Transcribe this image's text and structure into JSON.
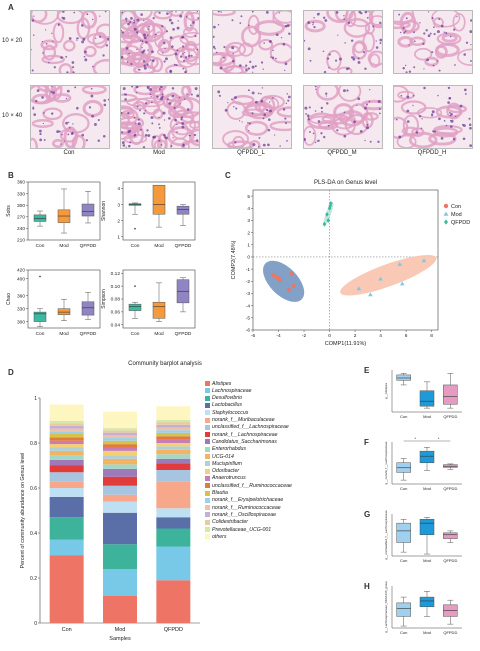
{
  "panels": {
    "A": "A",
    "B": "B",
    "C": "C",
    "D": "D",
    "E": "E",
    "F": "F",
    "G": "G",
    "H": "H"
  },
  "histology": {
    "row_labels": [
      "10 × 20",
      "10 × 40"
    ],
    "column_labels": [
      "Con",
      "Mod",
      "QFPDD_L",
      "QFPDD_M",
      "QFPDD_H"
    ]
  },
  "colors": {
    "con": "#3cb9a0",
    "mod": "#f59a3c",
    "qfpdd": "#9085c2",
    "tissue": "#e1a0c4",
    "nuclei": "#6a3f9a"
  },
  "alpha": {
    "groups": [
      "Con",
      "Mod",
      "QFPDD"
    ],
    "plots": [
      {
        "ylabel": "Sobs",
        "ticks": [
          "360",
          "330",
          "300",
          "270",
          "240",
          "210"
        ],
        "ymin": 210,
        "ymax": 360,
        "boxes": [
          [
            246,
            258,
            265,
            275,
            285
          ],
          [
            228,
            255,
            272,
            288,
            342
          ],
          [
            254,
            272,
            284,
            303,
            336
          ]
        ],
        "outliers": [
          [],
          [],
          []
        ]
      },
      {
        "ylabel": "Shannon",
        "ticks": [
          "4",
          "3",
          "2",
          "1"
        ],
        "ymin": 0.8,
        "ymax": 4.4,
        "boxes": [
          [
            2.4,
            2.95,
            3.0,
            3.05,
            3.1
          ],
          [
            1.6,
            2.4,
            3.0,
            4.2,
            4.2
          ],
          [
            1.7,
            2.4,
            2.7,
            2.9,
            3.0
          ]
        ],
        "outliers": [
          [
            1.5
          ],
          [],
          []
        ]
      },
      {
        "ylabel": "Chao",
        "ticks": [
          "420",
          "400",
          "360",
          "330",
          "300"
        ],
        "ymin": 285,
        "ymax": 420,
        "boxes": [
          [
            288,
            300,
            318,
            322,
            330
          ],
          [
            302,
            316,
            322,
            330,
            352
          ],
          [
            305,
            315,
            332,
            346,
            368
          ]
        ],
        "outliers": [
          [
            405
          ],
          [],
          []
        ]
      },
      {
        "ylabel": "Simpson",
        "ticks": [
          "0.12",
          "0.10",
          "0.08",
          "0.06",
          "0.04"
        ],
        "ymin": 0.035,
        "ymax": 0.125,
        "boxes": [
          [
            0.05,
            0.062,
            0.068,
            0.072,
            0.075
          ],
          [
            0.045,
            0.05,
            0.068,
            0.075,
            0.105
          ],
          [
            0.06,
            0.074,
            0.092,
            0.11,
            0.113
          ]
        ],
        "outliers": [
          [
            0.1
          ],
          [],
          []
        ]
      }
    ]
  },
  "plsda": {
    "title": "PLS-DA on Genus level",
    "xlabel": "COMP1(11.91%)",
    "ylabel": "COMP2(7.48%)",
    "xticks": [
      "-6",
      "-4",
      "-2",
      "0",
      "2",
      "4",
      "6",
      "8"
    ],
    "yticks": [
      "5",
      "4",
      "3",
      "2",
      "1",
      "0",
      "-1",
      "-2",
      "-3",
      "-4",
      "-5",
      "-6"
    ],
    "legend": [
      "Con",
      "Mod",
      "QFPDD"
    ],
    "points": {
      "con": [
        [
          -4.1,
          -1.7
        ],
        [
          -3.2,
          -2.7
        ],
        [
          -3.9,
          -1.9
        ],
        [
          -2.8,
          -2.4
        ],
        [
          -4.4,
          -1.5
        ],
        [
          -3.0,
          -1.4
        ]
      ],
      "mod": [
        [
          5.5,
          -0.6
        ],
        [
          7.4,
          -0.3
        ],
        [
          2.3,
          -2.6
        ],
        [
          4.0,
          -1.8
        ],
        [
          3.2,
          -3.1
        ],
        [
          5.7,
          -2.2
        ]
      ],
      "qfpdd": [
        [
          -0.4,
          2.7
        ],
        [
          0.1,
          4.4
        ],
        [
          0.0,
          4.0
        ],
        [
          -0.2,
          3.5
        ],
        [
          -0.1,
          3.0
        ],
        [
          0.05,
          4.2
        ]
      ]
    }
  },
  "chart_data": {
    "type": "bar",
    "title": "Community barplot analysis",
    "xlabel": "Samples",
    "ylabel": "Percent of community abundance on Genus level",
    "yticks": [
      "0",
      "0.2",
      "0.4",
      "0.6",
      "0.8",
      "1"
    ],
    "categories": [
      "Con",
      "Mod",
      "QFPDD"
    ],
    "series": [
      {
        "name": "Alistipes",
        "color": "#ee7565",
        "values": [
          0.3,
          0.12,
          0.19
        ]
      },
      {
        "name": "Lachnospiraceae",
        "color": "#78c8e8",
        "values": [
          0.07,
          0.12,
          0.15
        ]
      },
      {
        "name": "Desulfovibrio",
        "color": "#3cb39a",
        "values": [
          0.1,
          0.11,
          0.08
        ]
      },
      {
        "name": "Lactobacillus",
        "color": "#5a6ea8",
        "values": [
          0.09,
          0.14,
          0.05
        ]
      },
      {
        "name": "Staphylococcus",
        "color": "#bfe0f2",
        "values": [
          0.04,
          0.05,
          0.04
        ]
      },
      {
        "name": "norank_f__Muribaculaceae",
        "color": "#f8a88a",
        "values": [
          0.03,
          0.03,
          0.12
        ]
      },
      {
        "name": "unclassified_f__Lachnospiraceae",
        "color": "#a7c5e0",
        "values": [
          0.04,
          0.04,
          0.05
        ]
      },
      {
        "name": "norank_f__Lachnospiraceae",
        "color": "#e23b3b",
        "values": [
          0.03,
          0.04,
          0.03
        ]
      },
      {
        "name": "Candidatus_Saccharimonas",
        "color": "#9e7bb8",
        "values": [
          0.025,
          0.035,
          0.02
        ]
      },
      {
        "name": "Enterorhabdus",
        "color": "#a3d8c8",
        "values": [
          0.02,
          0.02,
          0.02
        ]
      },
      {
        "name": "UCG-014",
        "color": "#f2b463",
        "values": [
          0.02,
          0.025,
          0.02
        ]
      },
      {
        "name": "Mucispirillum",
        "color": "#b0d0d8",
        "values": [
          0.015,
          0.015,
          0.015
        ]
      },
      {
        "name": "Odoribacter",
        "color": "#f5d070",
        "values": [
          0.015,
          0.02,
          0.015
        ]
      },
      {
        "name": "Anaerotruncus",
        "color": "#c87db4",
        "values": [
          0.015,
          0.015,
          0.015
        ]
      },
      {
        "name": "unclassified_f__Ruminococcaceae",
        "color": "#e07b39",
        "values": [
          0.015,
          0.015,
          0.015
        ]
      },
      {
        "name": "Blautia",
        "color": "#d6c24a",
        "values": [
          0.015,
          0.015,
          0.015
        ]
      },
      {
        "name": "norank_f__Erysipelotrichaceae",
        "color": "#9ecfe8",
        "values": [
          0.012,
          0.012,
          0.012
        ]
      },
      {
        "name": "norank_f__Ruminococcaceae",
        "color": "#f0c0a8",
        "values": [
          0.012,
          0.012,
          0.012
        ]
      },
      {
        "name": "norank_f__Oscillospiraceae",
        "color": "#c5b0d5",
        "values": [
          0.012,
          0.012,
          0.012
        ]
      },
      {
        "name": "Colidextribacter",
        "color": "#e8cca0",
        "values": [
          0.012,
          0.01,
          0.012
        ]
      },
      {
        "name": "Prevotellaceae_UCG-001",
        "color": "#d4e8a8",
        "values": [
          0.01,
          0.01,
          0.01
        ]
      },
      {
        "name": "others",
        "color": "#fdf6c0",
        "values": [
          0.073,
          0.073,
          0.06
        ]
      }
    ]
  },
  "mini": {
    "groups": [
      "Con",
      "Mod",
      "QFPDD"
    ],
    "colors": [
      "#9fd0ef",
      "#1f9ad8",
      "#e69bc2"
    ],
    "plots": [
      {
        "label": "E",
        "ylabel": "g__Alistipes",
        "ymin": 0,
        "ymax": 1,
        "boxes": [
          [
            0.7,
            0.82,
            0.88,
            0.96,
            1.0
          ],
          [
            0.1,
            0.15,
            0.28,
            0.55,
            0.78
          ],
          [
            0.1,
            0.2,
            0.4,
            0.7,
            1.0
          ]
        ],
        "sig": false
      },
      {
        "label": "F",
        "ylabel": "g__norank_f__Lachnospiraceae",
        "ymin": 0,
        "ymax": 1,
        "boxes": [
          [
            0.1,
            0.3,
            0.42,
            0.55,
            0.66
          ],
          [
            0.35,
            0.55,
            0.72,
            0.85,
            0.95
          ],
          [
            0.38,
            0.43,
            0.46,
            0.5,
            0.52
          ]
        ],
        "sig": true
      },
      {
        "label": "G",
        "ylabel": "g__unclassified_f__Lachnospiraceae",
        "ymin": 0,
        "ymax": 1,
        "boxes": [
          [
            0.1,
            0.35,
            0.65,
            0.85,
            0.95
          ],
          [
            0.05,
            0.55,
            0.85,
            0.95,
            1.0
          ],
          [
            0.35,
            0.45,
            0.55,
            0.6,
            0.65
          ]
        ],
        "sig": false
      },
      {
        "label": "H",
        "ylabel": "g__Lachnospiraceae_NK4A136_group",
        "ymin": 0,
        "ymax": 1,
        "boxes": [
          [
            0.05,
            0.3,
            0.5,
            0.65,
            0.8
          ],
          [
            0.3,
            0.55,
            0.7,
            0.8,
            0.95
          ],
          [
            0.1,
            0.3,
            0.45,
            0.6,
            0.72
          ]
        ],
        "sig": false
      }
    ]
  }
}
